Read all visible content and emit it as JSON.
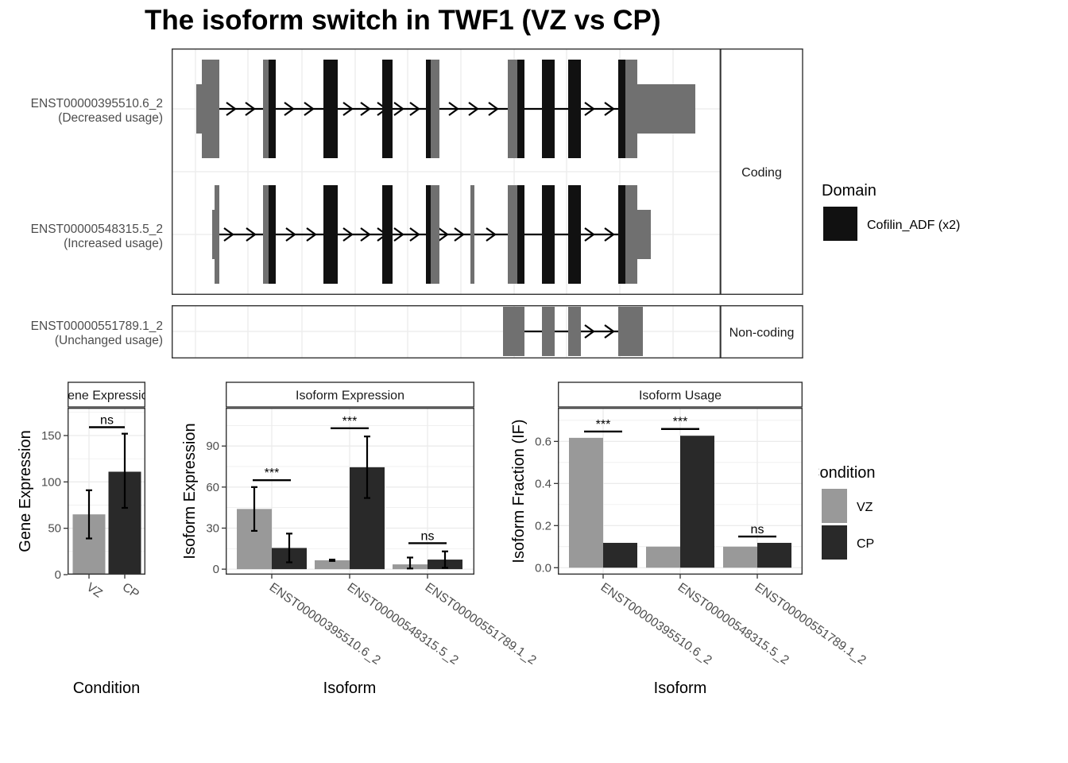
{
  "title": "The isoform switch in TWF1 (VZ vs CP)",
  "colors": {
    "vz": "#999999",
    "cp": "#292929",
    "domain": "#111111",
    "utr": "#707070",
    "grid": "#ebebeb"
  },
  "chart_data": [
    {
      "type": "gene-structure",
      "panels": [
        {
          "strip": "Coding",
          "isoforms": [
            {
              "name": "ENST00000395510.6_2",
              "usage": "(Decreased usage)"
            },
            {
              "name": "ENST00000548315.5_2",
              "usage": "(Increased usage)"
            }
          ]
        },
        {
          "strip": "Non-coding",
          "isoforms": [
            {
              "name": "ENST00000551789.1_2",
              "usage": "(Unchanged usage)"
            }
          ]
        }
      ],
      "legend": {
        "title": "Domain",
        "items": [
          {
            "label": "Cofilin_ADF (x2)",
            "color": "#111111"
          }
        ]
      }
    },
    {
      "type": "bar",
      "strip": "Gene Expression",
      "xlabel": "Condition",
      "ylabel": "Gene Expression",
      "ylim": [
        0,
        180
      ],
      "yticks": [
        0,
        50,
        100,
        150
      ],
      "categories": [
        "VZ",
        "CP"
      ],
      "values": [
        65,
        111
      ],
      "errors": [
        [
          39,
          91
        ],
        [
          72,
          152
        ]
      ],
      "significance": [
        {
          "label": "ns",
          "y": 159
        }
      ]
    },
    {
      "type": "bar",
      "strip": "Isoform Expression",
      "xlabel": "Isoform",
      "ylabel": "Isoform Expression",
      "ylim": [
        -4,
        118
      ],
      "yticks": [
        0,
        30,
        60,
        90
      ],
      "categories": [
        "ENST00000395510.6_2",
        "ENST00000548315.5_2",
        "ENST00000551789.1_2"
      ],
      "series": [
        {
          "name": "VZ",
          "values": [
            44,
            6.5,
            3.5
          ],
          "errors": [
            [
              28,
              60
            ],
            [
              6,
              7
            ],
            [
              0.5,
              8.5
            ]
          ]
        },
        {
          "name": "CP",
          "values": [
            15.5,
            74.5,
            7
          ],
          "errors": [
            [
              5,
              26
            ],
            [
              52,
              97
            ],
            [
              1,
              13
            ]
          ]
        }
      ],
      "significance": [
        {
          "label": "***",
          "y": 65
        },
        {
          "label": "***",
          "y": 103
        },
        {
          "label": "ns",
          "y": 19
        }
      ]
    },
    {
      "type": "bar",
      "strip": "Isoform Usage",
      "xlabel": "Isoform",
      "ylabel": "Isoform Fraction (IF)",
      "ylim": [
        -0.033,
        0.76
      ],
      "yticks": [
        "0.0",
        "0.2",
        "0.4",
        "0.6"
      ],
      "categories": [
        "ENST00000395510.6_2",
        "ENST00000548315.5_2",
        "ENST00000551789.1_2"
      ],
      "series": [
        {
          "name": "VZ",
          "values": [
            0.617,
            0.1,
            0.1
          ]
        },
        {
          "name": "CP",
          "values": [
            0.118,
            0.627,
            0.118
          ]
        }
      ],
      "significance": [
        {
          "label": "***",
          "y": 0.647
        },
        {
          "label": "***",
          "y": 0.659
        },
        {
          "label": "ns",
          "y": 0.148
        }
      ]
    }
  ],
  "condition_legend": {
    "title": "Condition",
    "items": [
      {
        "label": "VZ",
        "color": "#999999"
      },
      {
        "label": "CP",
        "color": "#292929"
      }
    ]
  }
}
